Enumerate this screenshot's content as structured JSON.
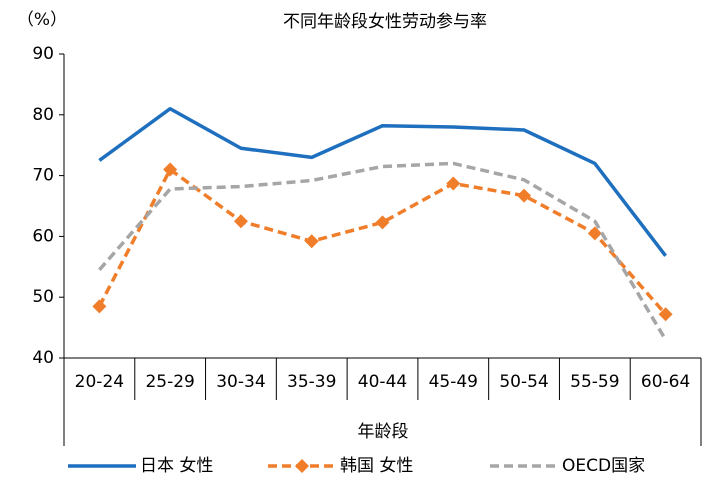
{
  "chart_data": {
    "type": "line",
    "title": "不同年龄段女性劳动参与率",
    "y_unit": "（%）",
    "xlabel": "年龄段",
    "categories": [
      "20-24",
      "25-29",
      "30-34",
      "35-39",
      "40-44",
      "45-49",
      "50-54",
      "55-59",
      "60-64"
    ],
    "series": [
      {
        "name": "日本 女性",
        "color": "#1f6fbf",
        "dash": false,
        "marker": false,
        "values": [
          72.5,
          81,
          74.5,
          73,
          78.2,
          78,
          77.5,
          72,
          56.8
        ]
      },
      {
        "name": "韩国 女性",
        "color": "#f07d2a",
        "dash": true,
        "marker": true,
        "values": [
          48.5,
          71,
          62.5,
          59.2,
          62.3,
          68.7,
          66.7,
          60.5,
          47.2
        ]
      },
      {
        "name": "OECD国家",
        "color": "#a6a6a6",
        "dash": true,
        "marker": false,
        "values": [
          54.5,
          67.8,
          68.2,
          69.2,
          71.5,
          72,
          69.3,
          62.5,
          43
        ]
      }
    ],
    "ylim": [
      40,
      90
    ],
    "yticks": [
      40,
      50,
      60,
      70,
      80,
      90
    ],
    "grid": false,
    "legend": "bottom"
  }
}
